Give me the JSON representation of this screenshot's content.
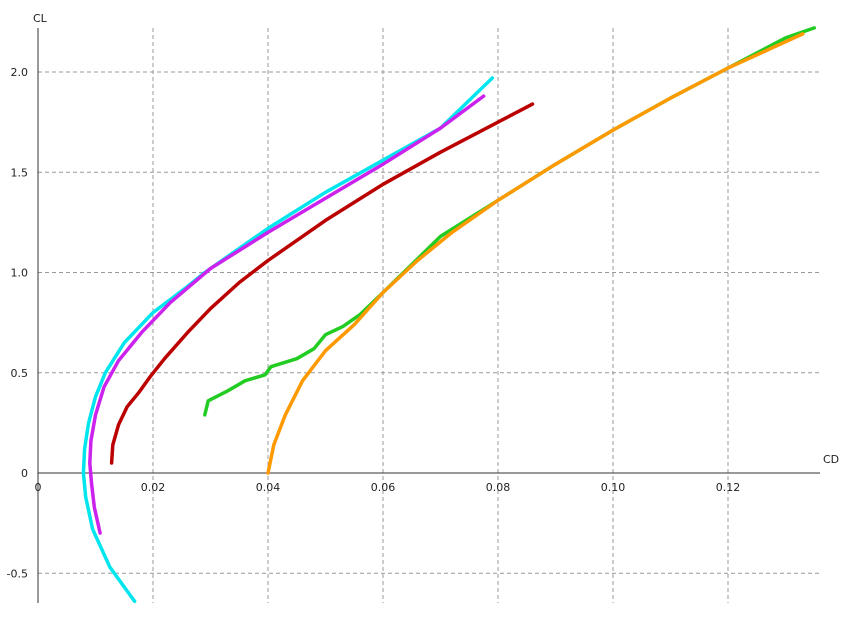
{
  "chart_data": {
    "type": "line",
    "xlabel": "CD",
    "ylabel": "CL",
    "xlim": [
      0,
      0.135
    ],
    "ylim": [
      -0.65,
      2.22
    ],
    "grid": true,
    "x_ticks": [
      0,
      0.02,
      0.04,
      0.06,
      0.08,
      0.1,
      0.12
    ],
    "x_tick_labels": [
      "0",
      "0.02",
      "0.04",
      "0.06",
      "0.08",
      "0.10",
      "0.12"
    ],
    "y_ticks": [
      -0.5,
      0,
      0.5,
      1.0,
      1.5,
      2.0
    ],
    "y_tick_labels": [
      "-0.5",
      "0",
      "0.5",
      "1.0",
      "1.5",
      "2.0"
    ],
    "series": [
      {
        "color": "#00e5ee",
        "points": [
          [
            0.0168,
            -0.64
          ],
          [
            0.0125,
            -0.47
          ],
          [
            0.0095,
            -0.28
          ],
          [
            0.0083,
            -0.12
          ],
          [
            0.0079,
            0.0
          ],
          [
            0.0081,
            0.12
          ],
          [
            0.0088,
            0.25
          ],
          [
            0.01,
            0.38
          ],
          [
            0.0117,
            0.5
          ],
          [
            0.015,
            0.65
          ],
          [
            0.02,
            0.8
          ],
          [
            0.026,
            0.93
          ],
          [
            0.029,
            1.0
          ],
          [
            0.034,
            1.1
          ],
          [
            0.04,
            1.22
          ],
          [
            0.05,
            1.4
          ],
          [
            0.06,
            1.56
          ],
          [
            0.07,
            1.72
          ],
          [
            0.079,
            1.97
          ]
        ]
      },
      {
        "color": "#cc22ee",
        "points": [
          [
            0.0108,
            -0.3
          ],
          [
            0.0098,
            -0.17
          ],
          [
            0.0093,
            -0.05
          ],
          [
            0.009,
            0.05
          ],
          [
            0.0092,
            0.16
          ],
          [
            0.01,
            0.29
          ],
          [
            0.0115,
            0.43
          ],
          [
            0.014,
            0.56
          ],
          [
            0.018,
            0.7
          ],
          [
            0.023,
            0.85
          ],
          [
            0.03,
            1.02
          ],
          [
            0.04,
            1.2
          ],
          [
            0.05,
            1.37
          ],
          [
            0.06,
            1.54
          ],
          [
            0.07,
            1.72
          ],
          [
            0.0775,
            1.88
          ]
        ]
      },
      {
        "color": "#bb0000",
        "points": [
          [
            0.0128,
            0.05
          ],
          [
            0.013,
            0.14
          ],
          [
            0.014,
            0.24
          ],
          [
            0.0155,
            0.33
          ],
          [
            0.0175,
            0.4
          ],
          [
            0.0195,
            0.48
          ],
          [
            0.022,
            0.57
          ],
          [
            0.026,
            0.7
          ],
          [
            0.03,
            0.82
          ],
          [
            0.035,
            0.95
          ],
          [
            0.04,
            1.06
          ],
          [
            0.05,
            1.26
          ],
          [
            0.06,
            1.44
          ],
          [
            0.07,
            1.6
          ],
          [
            0.086,
            1.84
          ]
        ]
      },
      {
        "color": "#22cc22",
        "points": [
          [
            0.029,
            0.29
          ],
          [
            0.0296,
            0.36
          ],
          [
            0.033,
            0.41
          ],
          [
            0.036,
            0.46
          ],
          [
            0.0395,
            0.49
          ],
          [
            0.0405,
            0.53
          ],
          [
            0.045,
            0.57
          ],
          [
            0.048,
            0.62
          ],
          [
            0.05,
            0.69
          ],
          [
            0.053,
            0.73
          ],
          [
            0.056,
            0.79
          ],
          [
            0.06,
            0.9
          ],
          [
            0.065,
            1.04
          ],
          [
            0.07,
            1.18
          ],
          [
            0.08,
            1.36
          ],
          [
            0.09,
            1.54
          ],
          [
            0.1,
            1.71
          ],
          [
            0.11,
            1.87
          ],
          [
            0.12,
            2.02
          ],
          [
            0.13,
            2.17
          ],
          [
            0.135,
            2.22
          ]
        ]
      },
      {
        "color": "#ff9900",
        "points": [
          [
            0.04,
            0.0
          ],
          [
            0.041,
            0.14
          ],
          [
            0.043,
            0.29
          ],
          [
            0.046,
            0.46
          ],
          [
            0.05,
            0.61
          ],
          [
            0.055,
            0.74
          ],
          [
            0.06,
            0.9
          ],
          [
            0.066,
            1.06
          ],
          [
            0.072,
            1.2
          ],
          [
            0.08,
            1.36
          ],
          [
            0.09,
            1.54
          ],
          [
            0.1,
            1.71
          ],
          [
            0.11,
            1.87
          ],
          [
            0.12,
            2.02
          ],
          [
            0.133,
            2.19
          ]
        ]
      }
    ]
  }
}
